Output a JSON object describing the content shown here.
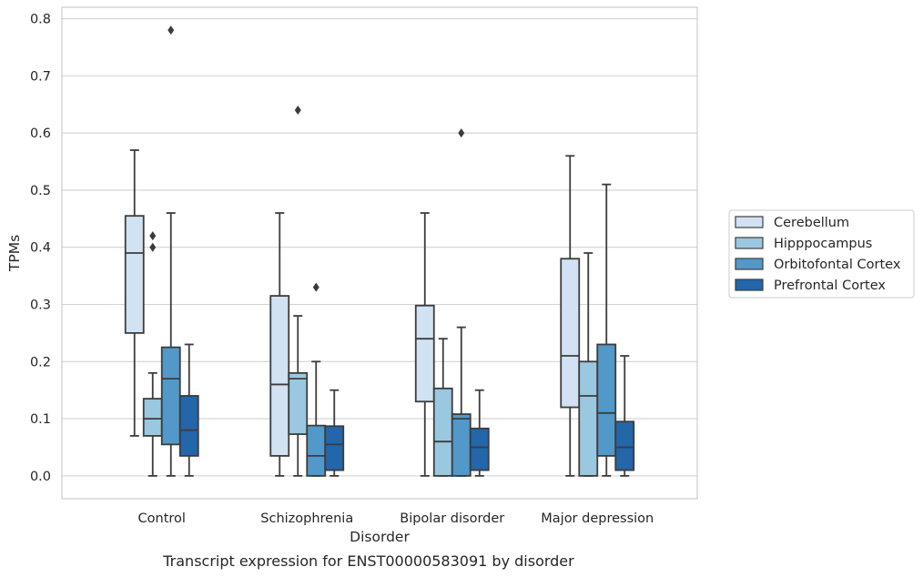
{
  "chart_data": {
    "type": "box",
    "caption": "Transcript expression for ENST00000583091 by disorder",
    "xlabel": "Disorder",
    "ylabel": "TPMs",
    "ylim": [
      -0.04,
      0.82
    ],
    "yticks": [
      "0.0",
      "0.1",
      "0.2",
      "0.3",
      "0.4",
      "0.5",
      "0.6",
      "0.7",
      "0.8"
    ],
    "grid": true,
    "legend_position": "right",
    "categories": [
      "Control",
      "Schizophrenia",
      "Bipolar disorder",
      "Major depression"
    ],
    "series": [
      {
        "name": "Cerebellum",
        "color": "#d1e2f2",
        "boxes": [
          {
            "q1": 0.25,
            "median": 0.39,
            "q3": 0.455,
            "whisker_low": 0.07,
            "whisker_high": 0.57,
            "outliers": []
          },
          {
            "q1": 0.035,
            "median": 0.16,
            "q3": 0.315,
            "whisker_low": 0.0,
            "whisker_high": 0.46,
            "outliers": []
          },
          {
            "q1": 0.13,
            "median": 0.24,
            "q3": 0.298,
            "whisker_low": 0.0,
            "whisker_high": 0.46,
            "outliers": []
          },
          {
            "q1": 0.12,
            "median": 0.21,
            "q3": 0.38,
            "whisker_low": 0.0,
            "whisker_high": 0.56,
            "outliers": []
          }
        ]
      },
      {
        "name": "Hipppocampus",
        "color": "#9ac8e0",
        "boxes": [
          {
            "q1": 0.07,
            "median": 0.1,
            "q3": 0.135,
            "whisker_low": 0.0,
            "whisker_high": 0.18,
            "outliers": [
              0.4,
              0.42
            ]
          },
          {
            "q1": 0.073,
            "median": 0.17,
            "q3": 0.18,
            "whisker_low": 0.0,
            "whisker_high": 0.28,
            "outliers": [
              0.64
            ]
          },
          {
            "q1": 0.0,
            "median": 0.06,
            "q3": 0.153,
            "whisker_low": 0.0,
            "whisker_high": 0.24,
            "outliers": []
          },
          {
            "q1": 0.0,
            "median": 0.14,
            "q3": 0.2,
            "whisker_low": 0.0,
            "whisker_high": 0.39,
            "outliers": []
          }
        ]
      },
      {
        "name": "Orbitofontal Cortex",
        "color": "#5298c9",
        "boxes": [
          {
            "q1": 0.055,
            "median": 0.17,
            "q3": 0.225,
            "whisker_low": 0.0,
            "whisker_high": 0.46,
            "outliers": [
              0.78
            ]
          },
          {
            "q1": 0.0,
            "median": 0.035,
            "q3": 0.088,
            "whisker_low": 0.0,
            "whisker_high": 0.2,
            "outliers": [
              0.33
            ]
          },
          {
            "q1": 0.0,
            "median": 0.1,
            "q3": 0.108,
            "whisker_low": 0.0,
            "whisker_high": 0.26,
            "outliers": [
              0.6
            ]
          },
          {
            "q1": 0.035,
            "median": 0.11,
            "q3": 0.23,
            "whisker_low": 0.0,
            "whisker_high": 0.51,
            "outliers": []
          }
        ]
      },
      {
        "name": "Prefrontal Cortex",
        "color": "#2366aa",
        "boxes": [
          {
            "q1": 0.035,
            "median": 0.08,
            "q3": 0.14,
            "whisker_low": 0.0,
            "whisker_high": 0.23,
            "outliers": []
          },
          {
            "q1": 0.01,
            "median": 0.055,
            "q3": 0.087,
            "whisker_low": 0.0,
            "whisker_high": 0.15,
            "outliers": []
          },
          {
            "q1": 0.01,
            "median": 0.05,
            "q3": 0.083,
            "whisker_low": 0.0,
            "whisker_high": 0.15,
            "outliers": []
          },
          {
            "q1": 0.01,
            "median": 0.05,
            "q3": 0.095,
            "whisker_low": 0.0,
            "whisker_high": 0.21,
            "outliers": []
          }
        ]
      }
    ]
  }
}
